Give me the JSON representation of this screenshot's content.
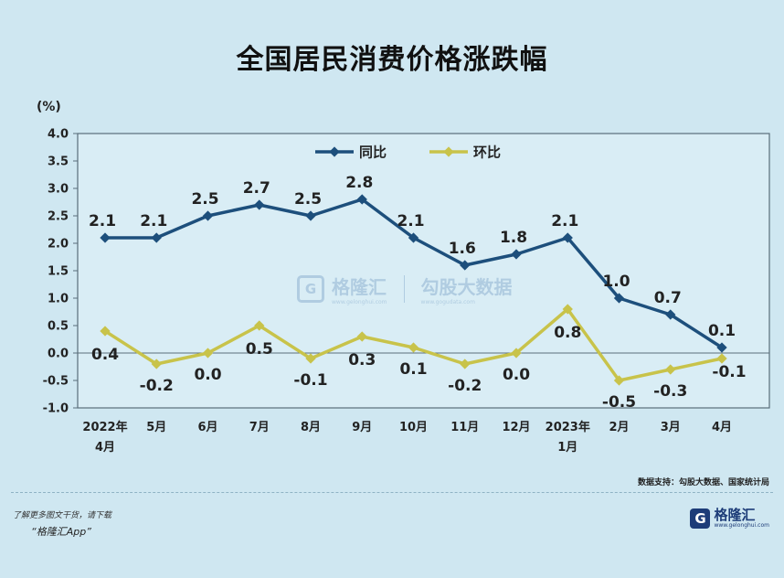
{
  "title": "全国居民消费价格涨跌幅",
  "watermark": {
    "logo_text": "格隆汇",
    "logo_url": "www.gelonghui.com",
    "partner_text": "勾股大数据",
    "partner_url": "www.gogudata.com"
  },
  "source": "数据支持：勾股大数据、国家统计局",
  "footer": {
    "promo_line1": "了解更多图文干货，请下载",
    "promo_line2": "“格隆汇App”",
    "brand_name": "格隆汇",
    "brand_url": "www.gelonghui.com"
  },
  "colors": {
    "background": "#cfe7f1",
    "plot_background": "#d9edf5",
    "yoy": "#1d4f7c",
    "mom": "#c8c34a"
  },
  "chart_data": {
    "type": "line",
    "ylabel": "(%)",
    "ylim": [
      -1.0,
      4.0
    ],
    "yticks": [
      "4.0",
      "3.5",
      "3.0",
      "2.5",
      "2.0",
      "1.5",
      "1.0",
      "0.5",
      "0.0",
      "-0.5",
      "-1.0"
    ],
    "categories": [
      [
        "2022年",
        "4月"
      ],
      [
        "5月"
      ],
      [
        "6月"
      ],
      [
        "7月"
      ],
      [
        "8月"
      ],
      [
        "9月"
      ],
      [
        "10月"
      ],
      [
        "11月"
      ],
      [
        "12月"
      ],
      [
        "2023年",
        "1月"
      ],
      [
        "2月"
      ],
      [
        "3月"
      ],
      [
        "4月"
      ]
    ],
    "legend_position": "top-left",
    "series": [
      {
        "name": "同比",
        "color": "#1d4f7c",
        "values": [
          2.1,
          2.1,
          2.5,
          2.7,
          2.5,
          2.8,
          2.1,
          1.6,
          1.8,
          2.1,
          1.0,
          0.7,
          0.1
        ],
        "labels": [
          "2.1",
          "2.1",
          "2.5",
          "2.7",
          "2.5",
          "2.8",
          "2.1",
          "1.6",
          "1.8",
          "2.1",
          "1.0",
          "0.7",
          "0.1"
        ]
      },
      {
        "name": "环比",
        "color": "#c8c34a",
        "values": [
          0.4,
          -0.2,
          0.0,
          0.5,
          -0.1,
          0.3,
          0.1,
          -0.2,
          0.0,
          0.8,
          -0.5,
          -0.3,
          -0.1
        ],
        "labels": [
          "0.4",
          "-0.2",
          "0.0",
          "0.5",
          "-0.1",
          "0.3",
          "0.1",
          "-0.2",
          "0.0",
          "0.8",
          "-0.5",
          "-0.3",
          "-0.1"
        ]
      }
    ]
  }
}
